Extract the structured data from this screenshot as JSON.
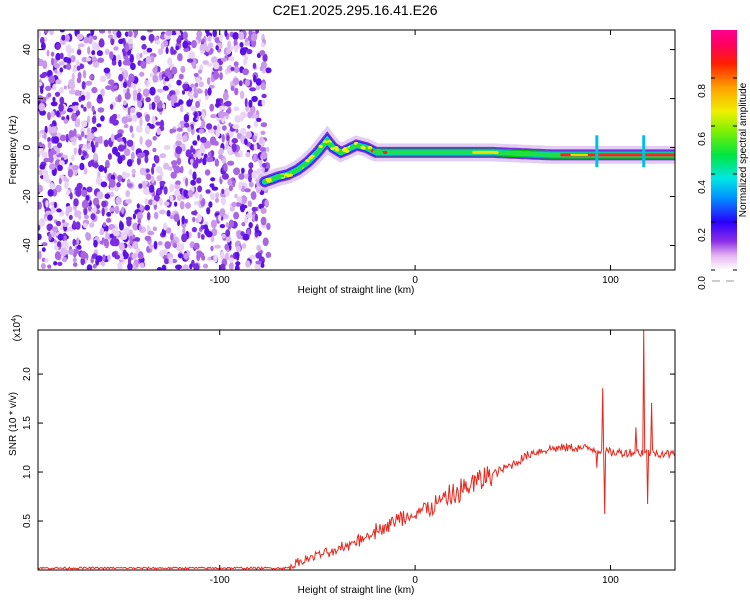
{
  "title": "C2E1.2025.295.16.41.E26",
  "colors": {
    "line": "#e8281e",
    "frame": "#000000",
    "green_band": "#00c800"
  },
  "chart_data": [
    {
      "type": "heatmap",
      "name": "spectrogram",
      "xlabel": "Height of straight line (km)",
      "ylabel": "Frequency (Hz)",
      "xlim": [
        -193,
        133
      ],
      "ylim": [
        -50,
        48
      ],
      "xticks": [
        -100,
        0,
        100
      ],
      "xtick_labels": [
        "-100",
        "0",
        "100"
      ],
      "yticks": [
        -40,
        -20,
        0,
        20,
        40
      ],
      "ytick_labels": [
        "-40",
        "-20",
        "0",
        "20",
        "40"
      ],
      "noise_region_x": [
        -193,
        -75
      ],
      "ridge": {
        "x": [
          -77,
          -70,
          -65,
          -60,
          -55,
          -50,
          -45,
          -42,
          -38,
          -35,
          -30,
          -25,
          -20,
          0,
          40,
          70,
          100,
          133
        ],
        "y": [
          -14,
          -12,
          -11,
          -9,
          -6,
          -2,
          3,
          0,
          -2,
          -1,
          1,
          0,
          -2,
          -2,
          -2,
          -3,
          -3,
          -3
        ]
      },
      "colorbar": {
        "label": "Normalized spectral amplitude",
        "range": [
          0,
          1
        ],
        "ticks": [
          0.0,
          0.2,
          0.4,
          0.6,
          0.8
        ],
        "tick_labels": [
          "0.0",
          "0.2",
          "0.4",
          "0.6",
          "0.8"
        ]
      }
    },
    {
      "type": "line",
      "name": "snr",
      "xlabel": "Height of straight line (km)",
      "ylabel": "SNR (10 * v/v)",
      "yscale_label": "(x10",
      "yscale_exp": "4",
      "yscale_close": ")",
      "xlim": [
        -193,
        133
      ],
      "ylim": [
        0,
        2.45
      ],
      "xticks": [
        -100,
        0,
        100
      ],
      "xtick_labels": [
        "-100",
        "0",
        "100"
      ],
      "yticks": [
        0.5,
        1.0,
        1.5,
        2.0
      ],
      "ytick_labels": [
        "0.5",
        "1.0",
        "1.5",
        "2.0"
      ],
      "trend": {
        "x": [
          -193,
          -65,
          -60,
          -50,
          -40,
          -30,
          -20,
          -10,
          0,
          10,
          20,
          30,
          40,
          50,
          60,
          70,
          80,
          90,
          100,
          110,
          120,
          133
        ],
        "y": [
          0.02,
          0.02,
          0.08,
          0.15,
          0.2,
          0.3,
          0.4,
          0.5,
          0.58,
          0.66,
          0.77,
          0.88,
          0.98,
          1.08,
          1.2,
          1.24,
          1.25,
          1.24,
          1.2,
          1.2,
          1.2,
          1.18
        ]
      },
      "spikes": [
        {
          "x": 93,
          "y": 1.05
        },
        {
          "x": 96,
          "y": 1.85
        },
        {
          "x": 97,
          "y": 0.58
        },
        {
          "x": 113,
          "y": 1.45
        },
        {
          "x": 117,
          "y": 2.45
        },
        {
          "x": 119,
          "y": 0.68
        },
        {
          "x": 121,
          "y": 1.7
        }
      ]
    }
  ]
}
